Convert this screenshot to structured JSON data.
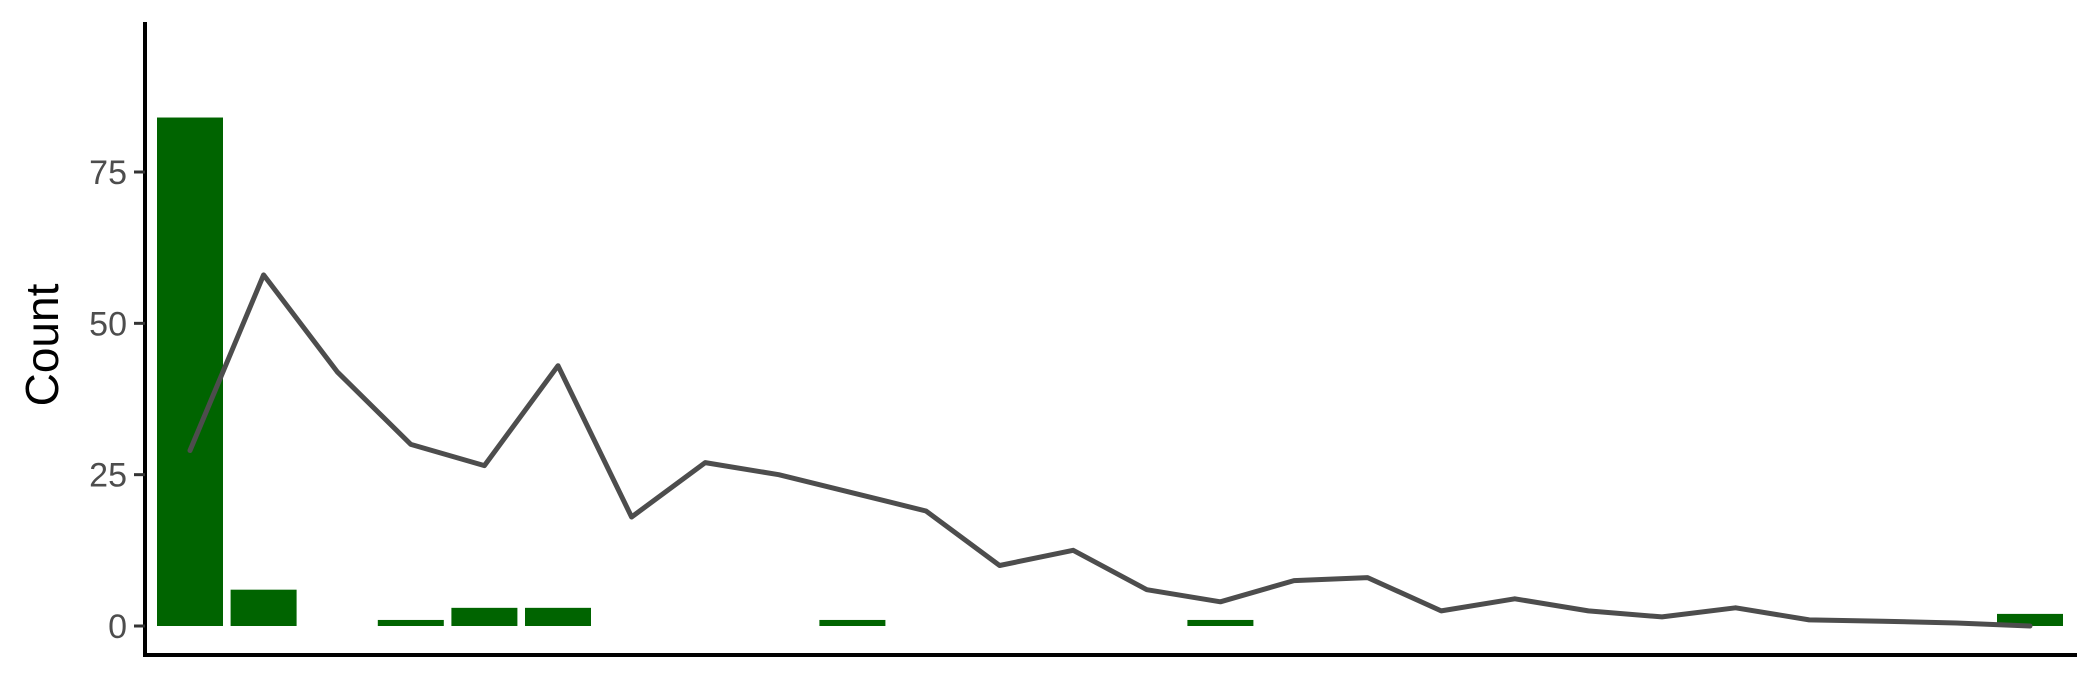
{
  "chart_data": {
    "type": "bar",
    "title": "",
    "xlabel": "",
    "ylabel": "Count",
    "ylim": [
      0,
      105
    ],
    "x_range": [
      0.5,
      26.5
    ],
    "grid": false,
    "legend": "none",
    "y_ticks": [
      0,
      25,
      50,
      75
    ],
    "bar_color": "#006400",
    "line_color": "#4d4d4d",
    "bars": [
      {
        "x": 1,
        "value": 84
      },
      {
        "x": 2,
        "value": 6
      },
      {
        "x": 4,
        "value": 1
      },
      {
        "x": 5,
        "value": 3
      },
      {
        "x": 6,
        "value": 3
      },
      {
        "x": 10,
        "value": 1
      },
      {
        "x": 15,
        "value": 1
      },
      {
        "x": 26,
        "value": 2
      }
    ],
    "line": [
      {
        "x": 1,
        "y": 29
      },
      {
        "x": 2,
        "y": 58
      },
      {
        "x": 3,
        "y": 42
      },
      {
        "x": 4,
        "y": 30
      },
      {
        "x": 5,
        "y": 26.5
      },
      {
        "x": 6,
        "y": 43
      },
      {
        "x": 7,
        "y": 18
      },
      {
        "x": 8,
        "y": 27
      },
      {
        "x": 9,
        "y": 25
      },
      {
        "x": 10,
        "y": 22
      },
      {
        "x": 11,
        "y": 19
      },
      {
        "x": 12,
        "y": 10
      },
      {
        "x": 13,
        "y": 12.5
      },
      {
        "x": 14,
        "y": 6
      },
      {
        "x": 15,
        "y": 4
      },
      {
        "x": 16,
        "y": 7.5
      },
      {
        "x": 17,
        "y": 8
      },
      {
        "x": 18,
        "y": 2.5
      },
      {
        "x": 19,
        "y": 4.5
      },
      {
        "x": 20,
        "y": 2.5
      },
      {
        "x": 21,
        "y": 1.5
      },
      {
        "x": 22,
        "y": 3
      },
      {
        "x": 23,
        "y": 1
      },
      {
        "x": 24,
        "y": 0.8
      },
      {
        "x": 25,
        "y": 0.5
      },
      {
        "x": 26,
        "y": 0
      }
    ]
  }
}
